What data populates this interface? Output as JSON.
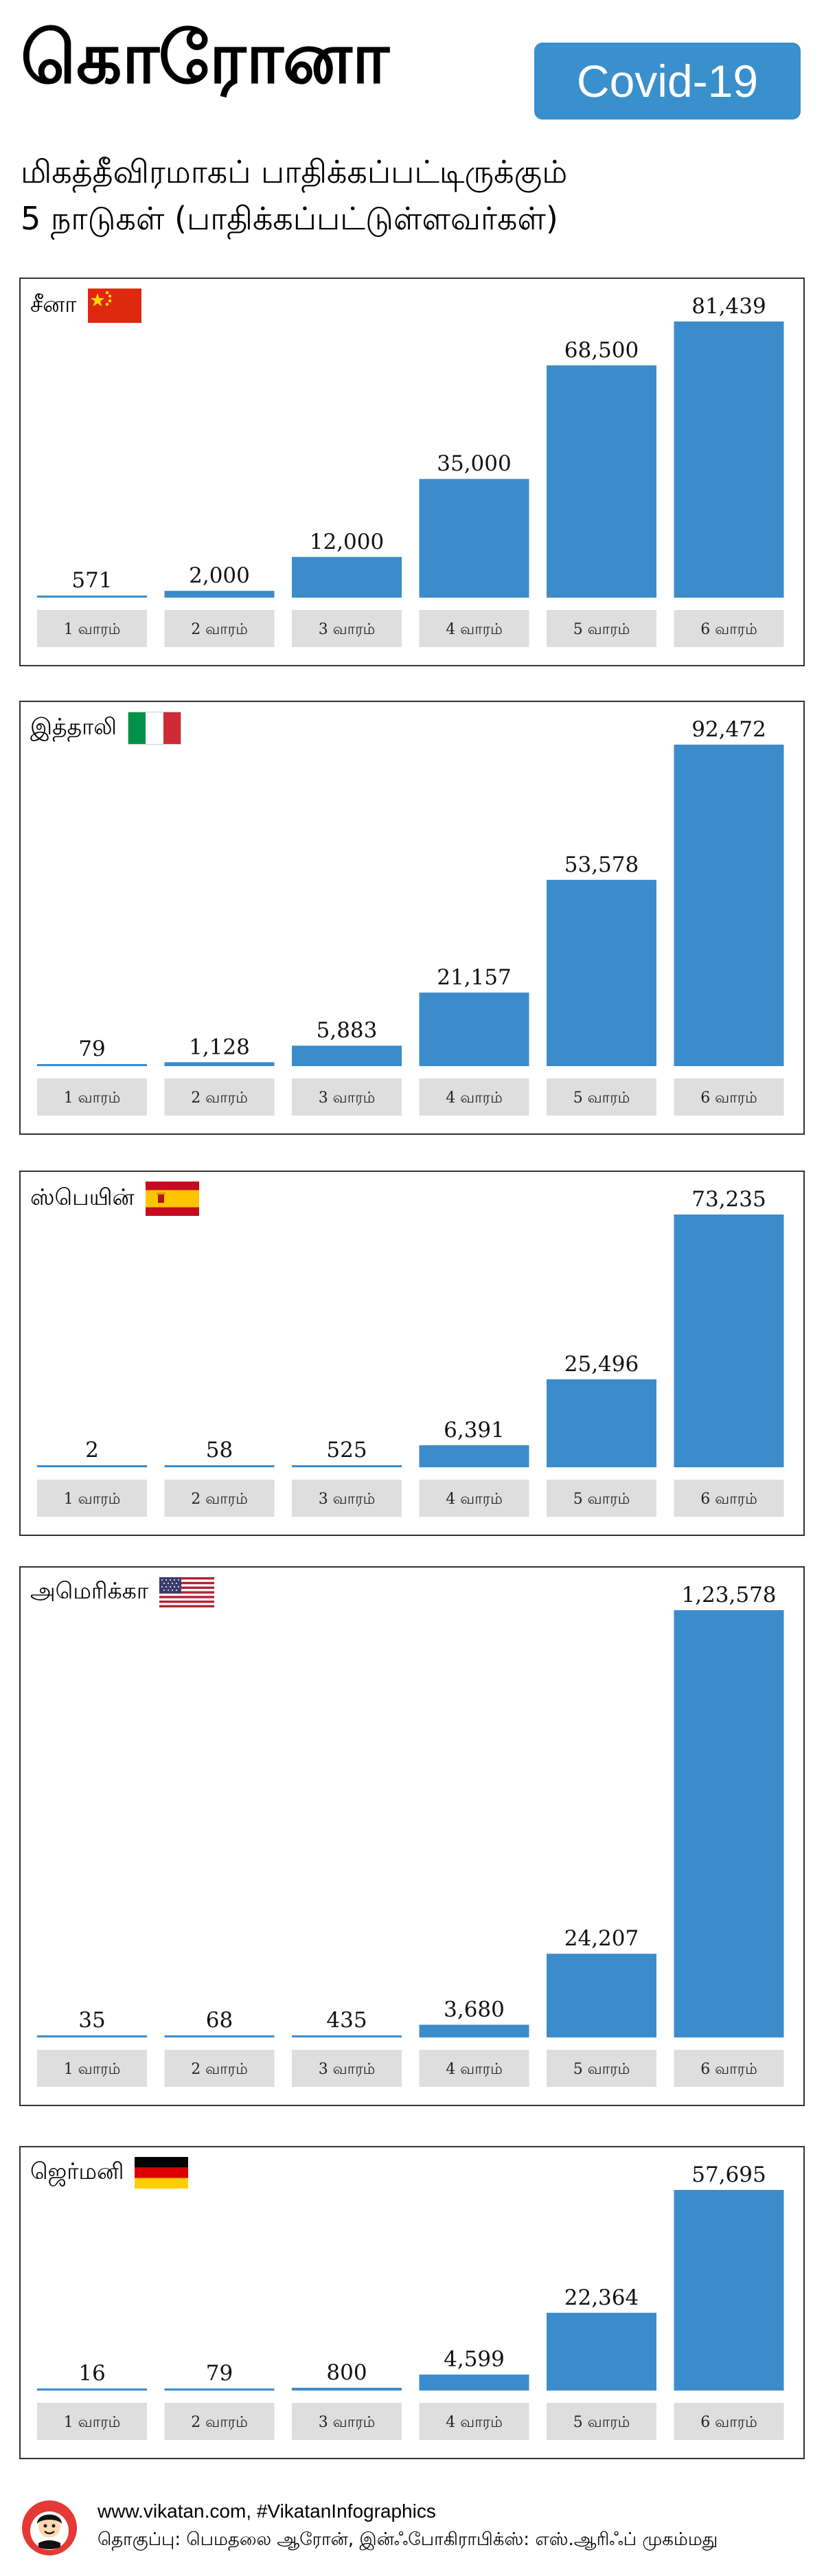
{
  "header": {
    "title": "கொரோனா",
    "badge": "Covid-19",
    "subtitle_line1": "மிகத்தீவிரமாகப் பாதிக்கப்பட்டிருக்கும்",
    "subtitle_line2": "5 நாடுகள் (பாதிக்கப்பட்டுள்ளவர்கள்)"
  },
  "colors": {
    "bar": "#3c8ccb",
    "label_box": "#dedede",
    "badge": "#3a8fcd"
  },
  "chart_data": [
    {
      "type": "bar",
      "title": "சீனா",
      "flag": "china-flag",
      "categories": [
        "1 வாரம்",
        "2 வாரம்",
        "3 வாரம்",
        "4 வாரம்",
        "5 வாரம்",
        "6 வாரம்"
      ],
      "values": [
        571,
        2000,
        12000,
        35000,
        68500,
        81439
      ],
      "value_labels": [
        "571",
        "2,000",
        "12,000",
        "35,000",
        "68,500",
        "81,439"
      ]
    },
    {
      "type": "bar",
      "title": "இத்தாலி",
      "flag": "italy-flag",
      "categories": [
        "1 வாரம்",
        "2 வாரம்",
        "3 வாரம்",
        "4 வாரம்",
        "5 வாரம்",
        "6 வாரம்"
      ],
      "values": [
        79,
        1128,
        5883,
        21157,
        53578,
        92472
      ],
      "value_labels": [
        "79",
        "1,128",
        "5,883",
        "21,157",
        "53,578",
        "92,472"
      ]
    },
    {
      "type": "bar",
      "title": "ஸ்பெயின்",
      "flag": "spain-flag",
      "categories": [
        "1 வாரம்",
        "2 வாரம்",
        "3 வாரம்",
        "4 வாரம்",
        "5 வாரம்",
        "6 வாரம்"
      ],
      "values": [
        2,
        58,
        525,
        6391,
        25496,
        73235
      ],
      "value_labels": [
        "2",
        "58",
        "525",
        "6,391",
        "25,496",
        "73,235"
      ]
    },
    {
      "type": "bar",
      "title": "அமெரிக்கா",
      "flag": "usa-flag",
      "categories": [
        "1 வாரம்",
        "2 வாரம்",
        "3 வாரம்",
        "4 வாரம்",
        "5 வாரம்",
        "6 வாரம்"
      ],
      "values": [
        35,
        68,
        435,
        3680,
        24207,
        123578
      ],
      "value_labels": [
        "35",
        "68",
        "435",
        "3,680",
        "24,207",
        "1,23,578"
      ]
    },
    {
      "type": "bar",
      "title": "ஜெர்மனி",
      "flag": "germany-flag",
      "categories": [
        "1 வாரம்",
        "2 வாரம்",
        "3 வாரம்",
        "4 வாரம்",
        "5 வாரம்",
        "6 வாரம்"
      ],
      "values": [
        16,
        79,
        800,
        4599,
        22364,
        57695
      ],
      "value_labels": [
        "16",
        "79",
        "800",
        "4,599",
        "22,364",
        "57,695"
      ]
    }
  ],
  "footer": {
    "website": "www.vikatan.com, #VikatanInfographics",
    "credits": "தொகுப்பு: பெமதலை ஆரோன், இன்ஃபோகிராபிக்ஸ்: எஸ்.ஆரிஃப் முகம்மது",
    "logo_icon": "vikatan-logo-icon"
  }
}
